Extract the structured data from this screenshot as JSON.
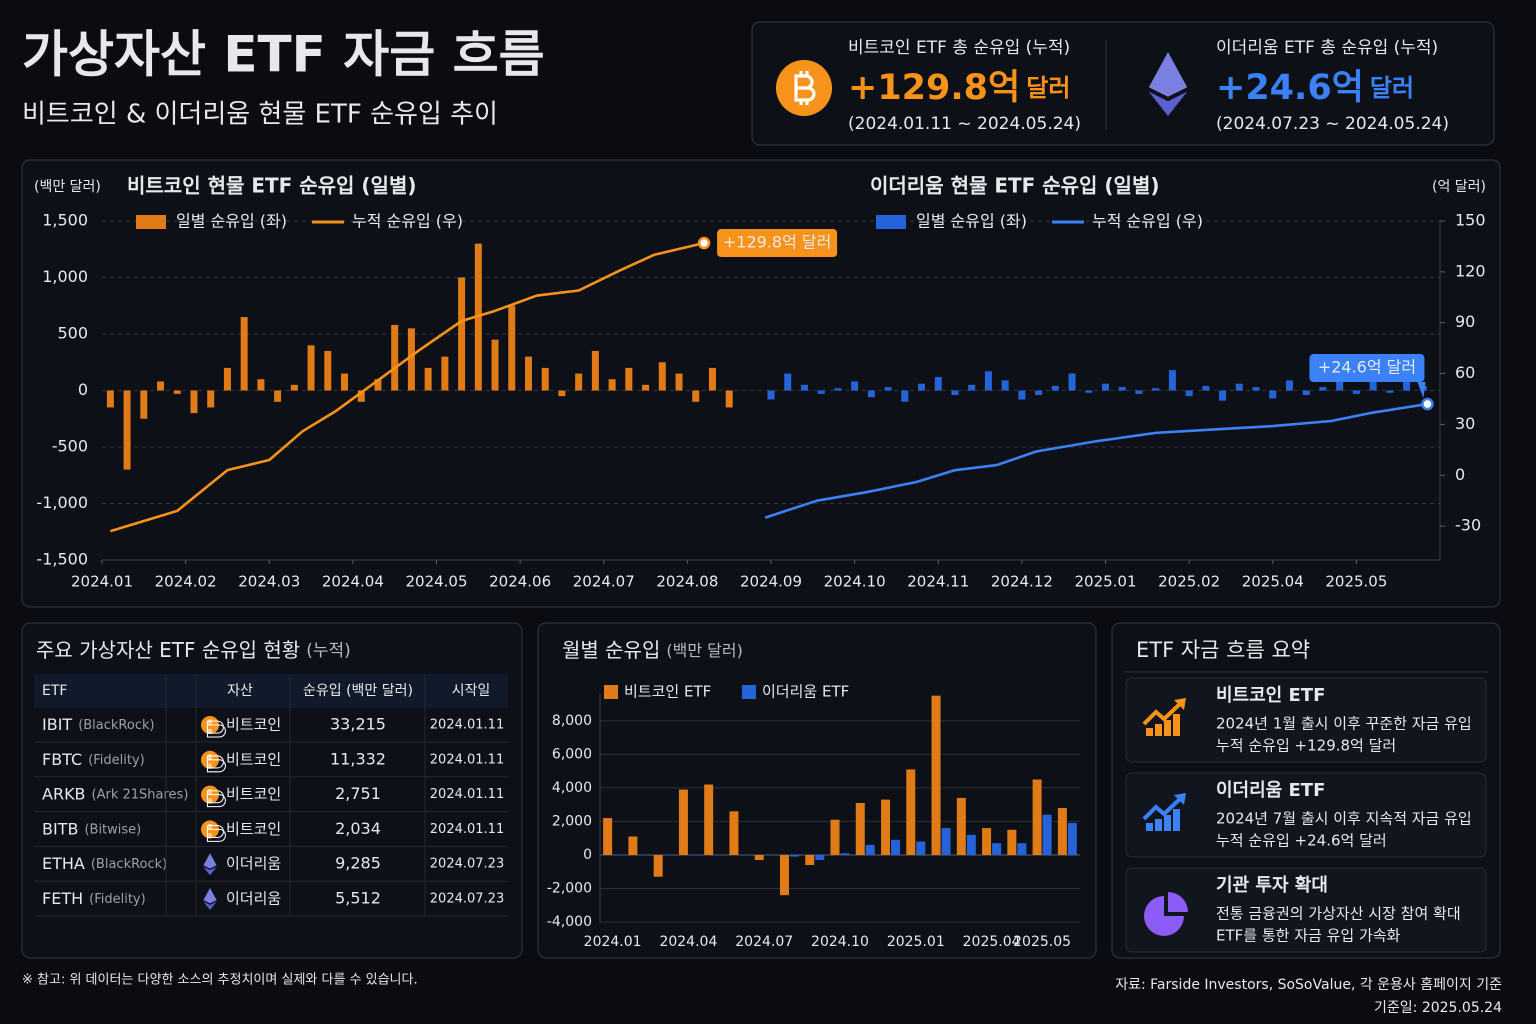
{
  "header": {
    "title": "가상자산 ETF 자금 흐름",
    "subtitle": "비트코인 & 이더리움 현물 ETF 순유입 추이"
  },
  "kpis": [
    {
      "label": "비트코인 ETF 총 순유입 (누적)",
      "value": "+129.8억",
      "unit": "달러",
      "period": "(2024.01.11 ~ 2024.05.24)",
      "color": "#f7931a",
      "icon": "btc"
    },
    {
      "label": "이더리움 ETF 총 순유입 (누적)",
      "value": "+24.6억",
      "unit": "달러",
      "period": "(2024.07.23 ~ 2024.05.24)",
      "color": "#3b82f6",
      "icon": "eth"
    }
  ],
  "chart_data": [
    {
      "type": "combo",
      "y_label": "(백만 달러)",
      "y2_label": "(억 달러)",
      "grid": true,
      "xlim": [
        0,
        16
      ],
      "xticks": [
        {
          "value": 0,
          "label": "2024.01"
        },
        {
          "value": 1,
          "label": "2024.02"
        },
        {
          "value": 2,
          "label": "2024.03"
        },
        {
          "value": 3,
          "label": "2024.04"
        },
        {
          "value": 4,
          "label": "2024.05"
        },
        {
          "value": 5,
          "label": "2024.06"
        },
        {
          "value": 6,
          "label": "2024.07"
        },
        {
          "value": 7,
          "label": "2024.08"
        },
        {
          "value": 8,
          "label": "2024.09"
        },
        {
          "value": 9,
          "label": "2024.10"
        },
        {
          "value": 10,
          "label": "2024.11"
        },
        {
          "value": 11,
          "label": "2024.12"
        },
        {
          "value": 12,
          "label": "2025.01"
        },
        {
          "value": 13,
          "label": "2025.02"
        },
        {
          "value": 14,
          "label": "2025.04"
        },
        {
          "value": 15,
          "label": "2025.05"
        }
      ],
      "ylim": [
        -1500,
        1500
      ],
      "yticks": [
        {
          "value": 1500,
          "label": "1,500"
        },
        {
          "value": 1000,
          "label": "1,000"
        },
        500,
        0,
        -500,
        {
          "value": -1000,
          "label": "-1,000"
        },
        {
          "value": -1500,
          "label": "-1,500"
        }
      ],
      "y2lim": [
        -50,
        150
      ],
      "y2ticks": [
        150,
        120,
        90,
        60,
        30,
        0,
        -30
      ],
      "groups": [
        {
          "title": "비트코인 현물 ETF 순유입 (일별)",
          "color": "#f7931a",
          "annotation": "+129.8억 달러",
          "series": [
            {
              "name": "일별 순유입 (좌)",
              "type": "bar",
              "color": "#e07b17",
              "x": [
                0.1,
                0.3,
                0.5,
                0.7,
                0.9,
                1.1,
                1.3,
                1.5,
                1.7,
                1.9,
                2.1,
                2.3,
                2.5,
                2.7,
                2.9,
                3.1,
                3.3,
                3.5,
                3.7,
                3.9,
                4.1,
                4.3,
                4.5,
                4.7,
                4.9,
                5.1,
                5.3,
                5.5,
                5.7,
                5.9,
                6.1,
                6.3,
                6.5,
                6.7,
                6.9,
                7.1,
                7.3,
                7.5
              ],
              "values": [
                -150,
                -700,
                -250,
                80,
                -30,
                -200,
                -150,
                200,
                650,
                100,
                -100,
                50,
                400,
                350,
                150,
                -100,
                100,
                580,
                550,
                200,
                300,
                1000,
                1300,
                450,
                750,
                300,
                200,
                -50,
                150,
                350,
                100,
                200,
                50,
                250,
                150,
                -100,
                200,
                -150
              ]
            },
            {
              "name": "누적 순유입 (우)",
              "type": "line",
              "axis": "y2",
              "color": "#f7931a",
              "x": [
                0.1,
                0.9,
                1.5,
                2.0,
                2.4,
                2.8,
                3.3,
                3.8,
                4.3,
                4.7,
                5.2,
                5.7,
                6.2,
                6.6,
                7.2
              ],
              "values": [
                -33,
                -21,
                3,
                9,
                26,
                38,
                56,
                74,
                91,
                97,
                106,
                109,
                121,
                130,
                137
              ]
            }
          ]
        },
        {
          "title": "이더리움 현물 ETF 순유입 (일별)",
          "color": "#3b82f6",
          "annotation": "+24.6억 달러",
          "series": [
            {
              "name": "일별 순유입 (좌)",
              "type": "bar",
              "color": "#2563d9",
              "x": [
                8.0,
                8.2,
                8.4,
                8.6,
                8.8,
                9.0,
                9.2,
                9.4,
                9.6,
                9.8,
                10.0,
                10.2,
                10.4,
                10.6,
                10.8,
                11.0,
                11.2,
                11.4,
                11.6,
                11.8,
                12.0,
                12.2,
                12.4,
                12.6,
                12.8,
                13.0,
                13.2,
                13.4,
                13.6,
                13.8,
                14.0,
                14.2,
                14.4,
                14.6,
                14.8,
                15.0,
                15.2,
                15.4,
                15.6,
                15.8
              ],
              "values": [
                -80,
                150,
                50,
                -30,
                20,
                80,
                -60,
                30,
                -100,
                60,
                120,
                -40,
                50,
                170,
                90,
                -80,
                -40,
                40,
                150,
                -20,
                60,
                30,
                -30,
                20,
                180,
                -50,
                40,
                -90,
                60,
                30,
                -70,
                90,
                -40,
                30,
                100,
                -30,
                80,
                -20,
                120,
                40
              ]
            },
            {
              "name": "누적 순유입 (우)",
              "type": "line",
              "axis": "y2",
              "color": "#3b82f6",
              "x": [
                7.93,
                8.55,
                9.14,
                9.74,
                10.2,
                10.7,
                11.17,
                11.88,
                12.6,
                13.3,
                14.0,
                14.7,
                15.2,
                15.85
              ],
              "values": [
                -25,
                -15,
                -10,
                -4,
                3,
                6,
                14,
                20,
                25,
                27,
                29,
                32,
                37,
                42
              ]
            }
          ]
        }
      ]
    },
    {
      "type": "bar",
      "title": "월별 순유입",
      "unit": "(백만 달러)",
      "categories": [
        "2024.01",
        null,
        null,
        "2024.04",
        null,
        null,
        "2024.07",
        null,
        null,
        "2024.10",
        null,
        null,
        "2025.01",
        null,
        null,
        "2025.04",
        null,
        "2025.05",
        null
      ],
      "series": [
        {
          "name": "비트코인 ETF",
          "color": "#e07b17",
          "values": [
            2200,
            1100,
            -1300,
            3900,
            4200,
            2600,
            -300,
            -2400,
            -600,
            2100,
            3100,
            3300,
            5100,
            9500,
            3400,
            1600,
            1500,
            4500,
            2800
          ]
        },
        {
          "name": "이더리움 ETF",
          "color": "#2563d9",
          "values": [
            0,
            0,
            0,
            0,
            0,
            0,
            0,
            -100,
            -300,
            100,
            600,
            900,
            800,
            1600,
            1200,
            700,
            700,
            2400,
            1900
          ]
        }
      ],
      "ylim": [
        -4000,
        9600
      ],
      "yticks": [
        {
          "value": 8000,
          "label": "8,000"
        },
        {
          "value": 6000,
          "label": "6,000"
        },
        {
          "value": 4000,
          "label": "4,000"
        },
        {
          "value": 2000,
          "label": "2,000"
        },
        0,
        {
          "value": -2000,
          "label": "-2,000"
        },
        {
          "value": -4000,
          "label": "-4,000"
        }
      ],
      "grid": true
    }
  ],
  "table": {
    "title": "주요 가상자산 ETF 순유입 현황",
    "title_note": "(누적)",
    "columns": [
      "ETF",
      "자산",
      "순유입 (백만 달러)",
      "시작일"
    ],
    "rows": [
      {
        "name": "IBIT",
        "issuer": "(BlackRock)",
        "asset": "비트코인",
        "inflow": "33,215",
        "start": "2024.01.11",
        "icon": "btc"
      },
      {
        "name": "FBTC",
        "issuer": "(Fidelity)",
        "asset": "비트코인",
        "inflow": "11,332",
        "start": "2024.01.11",
        "icon": "btc"
      },
      {
        "name": "ARKB",
        "issuer": "(Ark 21Shares)",
        "asset": "비트코인",
        "inflow": "2,751",
        "start": "2024.01.11",
        "icon": "btc"
      },
      {
        "name": "BITB",
        "issuer": "(Bitwise)",
        "asset": "비트코인",
        "inflow": "2,034",
        "start": "2024.01.11",
        "icon": "btc"
      },
      {
        "name": "ETHA",
        "issuer": "(BlackRock)",
        "asset": "이더리움",
        "inflow": "9,285",
        "start": "2024.07.23",
        "icon": "eth"
      },
      {
        "name": "FETH",
        "issuer": "(Fidelity)",
        "asset": "이더리움",
        "inflow": "5,512",
        "start": "2024.07.23",
        "icon": "eth"
      }
    ]
  },
  "summary": {
    "title": "ETF 자금 흐름 요약",
    "cards": [
      {
        "title": "비트코인 ETF",
        "lines": [
          "2024년 1월 출시 이후 꾸준한 자금 유입",
          "누적 순유입 +129.8억 달러"
        ],
        "color": "#f7931a",
        "icon": "trend"
      },
      {
        "title": "이더리움 ETF",
        "lines": [
          "2024년 7월 출시 이후 지속적 자금 유입",
          "누적 순유입 +24.6억 달러"
        ],
        "color": "#3b82f6",
        "icon": "trend"
      },
      {
        "title": "기관 투자 확대",
        "lines": [
          "전통 금융권의 가상자산 시장 참여 확대",
          "ETF를 통한 자금 유입 가속화"
        ],
        "color": "#8b5cf6",
        "icon": "pie"
      }
    ]
  },
  "footer": {
    "note": "※ 참고: 위 데이터는 다양한 소스의 추정치이며 실제와 다를 수 있습니다.",
    "source": "자료: Farside Investors, SoSoValue, 각 운용사 홈페이지 기준",
    "date": "기준일: 2025.05.24"
  }
}
